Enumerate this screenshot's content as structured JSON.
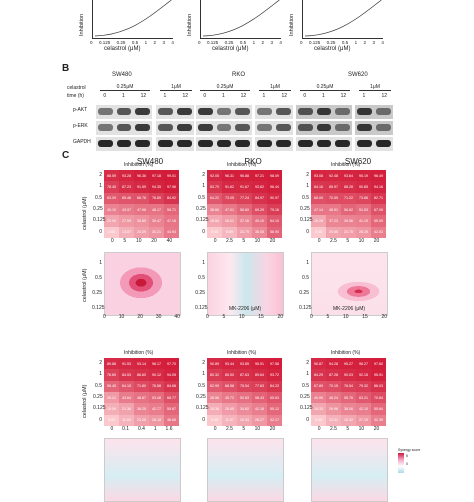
{
  "panelA": {
    "ylabel": "Inhibition",
    "xlabel": "celastrol (μM)",
    "xticks": [
      "0",
      "0.125",
      "0.25",
      "0.5",
      "1",
      "2",
      "3",
      "4"
    ],
    "xticks_short": [
      "0",
      "0.125",
      "0.25",
      "1",
      "2",
      "3",
      "4"
    ]
  },
  "panelB": {
    "letter": "B",
    "row_celastrol": "celastrol",
    "row_time": "time (h)",
    "lines": [
      "SW480",
      "RKO",
      "SW620"
    ],
    "groups": [
      {
        "dose": "0.25μM",
        "times": [
          "0",
          "1",
          "12"
        ]
      },
      {
        "dose": "1μM",
        "times": [
          "1",
          "12"
        ]
      },
      {
        "dose": "0.25μM",
        "times": [
          "0",
          "1",
          "12"
        ]
      },
      {
        "dose": "1μM",
        "times": [
          "1",
          "12"
        ]
      },
      {
        "dose": "0.25μM",
        "times": [
          "0",
          "1",
          "12"
        ]
      },
      {
        "dose": "1μM",
        "times": [
          "1",
          "12"
        ]
      }
    ],
    "blots": [
      "p-AKT",
      "p-ERK",
      "GAPDH"
    ]
  },
  "panelC": {
    "letter": "C",
    "lines": [
      "SW480",
      "RKO",
      "SW620"
    ],
    "heat_title": "Inhibition (%)",
    "ylabel": "celastrol (μM)",
    "yticks": [
      "2",
      "1",
      "0.5",
      "0.25",
      "0.125",
      "0"
    ],
    "xticks_mk": [
      [
        "0",
        "5",
        "10",
        "20",
        "40"
      ],
      [
        "0",
        "2.5",
        "5",
        "10",
        "20"
      ],
      [
        "0",
        "2.5",
        "5",
        "10",
        "20"
      ]
    ],
    "xticks_second": [
      [
        "0",
        "0.1",
        "0.4",
        "1",
        "1.6"
      ]
    ],
    "xlabel_mk": "MK-2206 (μM)",
    "contour_yticks": [
      "1",
      "0.5",
      "0.25",
      "0.125"
    ],
    "contour_xticks": [
      [
        "0",
        "10",
        "20",
        "30",
        "40"
      ],
      [
        "0",
        "5",
        "10",
        "15",
        "20"
      ],
      [
        "0",
        "5",
        "10",
        "15",
        "20"
      ]
    ],
    "legend_title": "Synergy score",
    "legend_values": [
      "5",
      "0"
    ],
    "heatmap1": [
      [
        [
          "88.59",
          "93.28",
          "96.36",
          "97.18",
          "99.01"
        ],
        [
          "78.45",
          "87.23",
          "91.59",
          "94.35",
          "97.96"
        ],
        [
          "63.09",
          "65.46",
          "66.76",
          "76.89",
          "84.92"
        ],
        [
          "40.10",
          "43.97",
          "47.96",
          "48.17",
          "55.71"
        ],
        [
          "20.00",
          "27.05",
          "30.60",
          "39.47",
          "47.18"
        ],
        [
          "0.00",
          "13.87",
          "24.09",
          "30.21",
          "44.94"
        ]
      ],
      [
        [
          "92.05",
          "96.31",
          "96.88",
          "97.21",
          "98.09"
        ],
        [
          "83.70",
          "91.62",
          "91.67",
          "93.62",
          "96.44"
        ],
        [
          "64.22",
          "73.05",
          "77.24",
          "84.97",
          "90.97"
        ],
        [
          "38.66",
          "47.01",
          "56.60",
          "69.29",
          "79.16"
        ],
        [
          "18.54",
          "26.01",
          "37.16",
          "49.10",
          "64.10"
        ],
        [
          "0.00",
          "8.89",
          "23.79",
          "36.08",
          "56.90"
        ]
      ],
      [
        [
          "93.08",
          "92.48",
          "93.64",
          "95.19",
          "96.49"
        ],
        [
          "84.16",
          "85.97",
          "88.28",
          "90.85",
          "94.16"
        ],
        [
          "68.09",
          "70.59",
          "71.22",
          "73.86",
          "82.71"
        ],
        [
          "47.14",
          "45.91",
          "56.62",
          "51.53",
          "67.09"
        ],
        [
          "19.28",
          "37.23",
          "39.56",
          "41.19",
          "55.09"
        ],
        [
          "0.00",
          "20.65",
          "23.75",
          "28.39",
          "42.53"
        ]
      ]
    ],
    "heatmap2": [
      [
        [
          "89.88",
          "91.53",
          "93.14",
          "96.17",
          "97.70"
        ],
        [
          "76.69",
          "84.53",
          "86.60",
          "90.12",
          "94.05"
        ],
        [
          "56.45",
          "64.15",
          "71.80",
          "76.58",
          "84.68"
        ],
        [
          "26.21",
          "43.64",
          "48.87",
          "53.48",
          "68.77"
        ],
        [
          "15.09",
          "21.36",
          "38.25",
          "42.77",
          "55.87"
        ],
        [
          "0.00",
          "11.64",
          "23.25",
          "28.18",
          "46.65"
        ]
      ],
      [
        [
          "90.89",
          "93.44",
          "93.85",
          "95.91",
          "97.58"
        ],
        [
          "80.32",
          "85.50",
          "87.63",
          "89.64",
          "93.72"
        ],
        [
          "62.99",
          "68.58",
          "75.54",
          "77.63",
          "84.23"
        ],
        [
          "38.56",
          "45.72",
          "50.83",
          "58.43",
          "65.63"
        ],
        [
          "15.36",
          "25.45",
          "34.82",
          "42.18",
          "55.12"
        ],
        [
          "0.00",
          "11.97",
          "19.34",
          "28.27",
          "42.17"
        ]
      ],
      [
        [
          "90.87",
          "94.28",
          "95.27",
          "96.27",
          "97.80"
        ],
        [
          "84.29",
          "87.28",
          "90.03",
          "92.15",
          "95.91"
        ],
        [
          "67.89",
          "70.15",
          "76.54",
          "79.32",
          "86.03"
        ],
        [
          "40.99",
          "48.24",
          "55.76",
          "63.21",
          "70.84"
        ],
        [
          "19.33",
          "29.96",
          "38.06",
          "42.10",
          "55.64"
        ],
        [
          "0.00",
          "13.31",
          "19.42",
          "27.19",
          "42.39"
        ]
      ]
    ]
  }
}
